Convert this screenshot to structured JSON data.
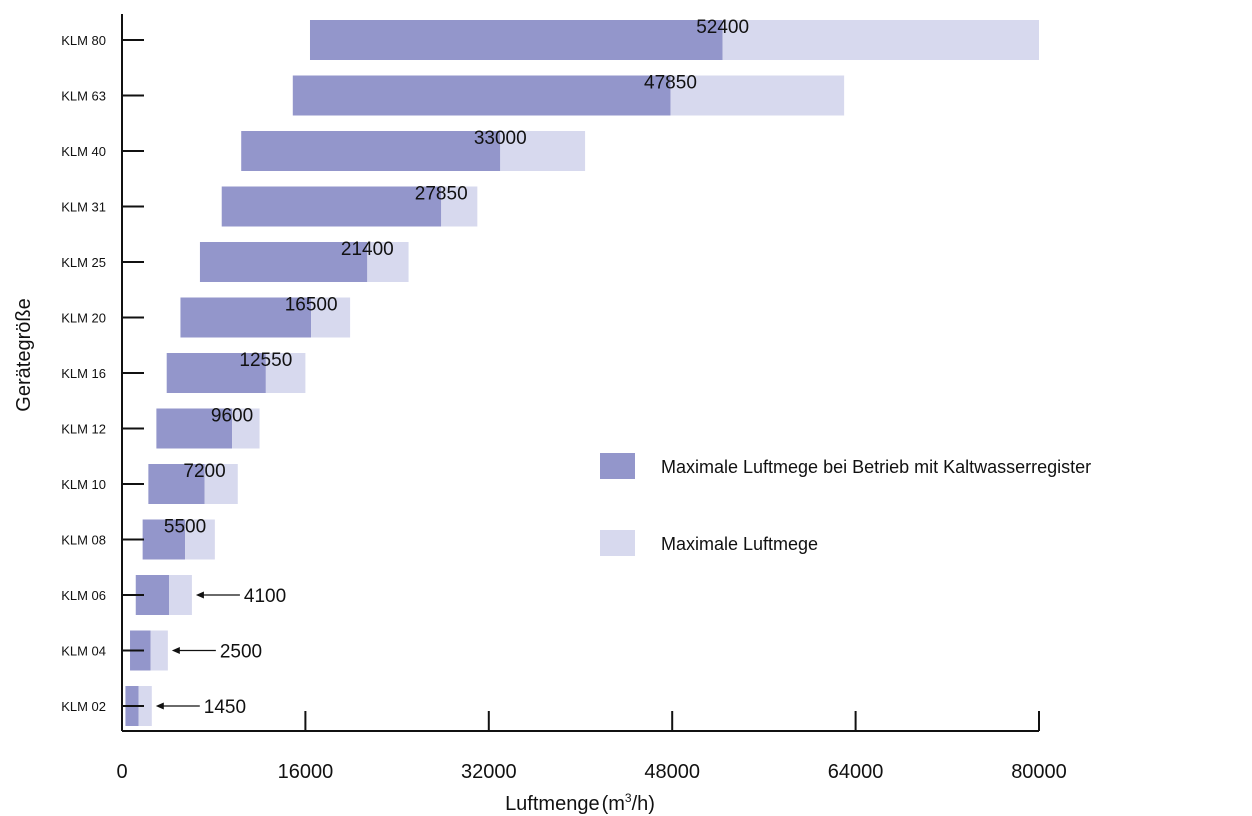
{
  "chart_data": {
    "type": "bar",
    "orientation": "horizontal",
    "title": "",
    "xlabel": "Luftmenge",
    "xlabel_unit": {
      "prefix": "(m",
      "sup": "3",
      "suffix": "/h)"
    },
    "ylabel": "Gerätegröße",
    "xlim": [
      0,
      80000
    ],
    "x_ticks": [
      "0",
      "16000",
      "32000",
      "48000",
      "64000",
      "80000"
    ],
    "grid": false,
    "legend_position": "right",
    "categories": [
      "KLM 80",
      "KLM 63",
      "KLM 40",
      "KLM 31",
      "KLM 25",
      "KLM 20",
      "KLM 16",
      "KLM 12",
      "KLM 10",
      "KLM 08",
      "KLM 06",
      "KLM 04",
      "KLM 02"
    ],
    "series": [
      {
        "name": "Maximale Luftmege bei Betrieb mit Kaltwasserregister",
        "color": "#9396cb",
        "start": [
          16400,
          14900,
          10400,
          8700,
          6800,
          5100,
          3900,
          3000,
          2300,
          1800,
          1200,
          700,
          300
        ],
        "end": [
          52400,
          47850,
          33000,
          27850,
          21400,
          16500,
          12550,
          9600,
          7200,
          5500,
          4100,
          2500,
          1450
        ]
      },
      {
        "name": "Maximale Luftmege",
        "color": "#d7d9ee",
        "start": [
          52400,
          47850,
          33000,
          27850,
          21400,
          16500,
          12550,
          9600,
          7200,
          5500,
          4100,
          2500,
          1450
        ],
        "end": [
          80000,
          63000,
          40400,
          31000,
          25000,
          19900,
          16000,
          12000,
          10100,
          8100,
          6100,
          4000,
          2600
        ]
      }
    ],
    "value_labels": [
      "52400",
      "47850",
      "33000",
      "27850",
      "21400",
      "16500",
      "12550",
      "9600",
      "7200",
      "5500",
      "4100",
      "2500",
      "1450"
    ],
    "arrow_labels_for": [
      "KLM 06",
      "KLM 04",
      "KLM 02"
    ]
  }
}
